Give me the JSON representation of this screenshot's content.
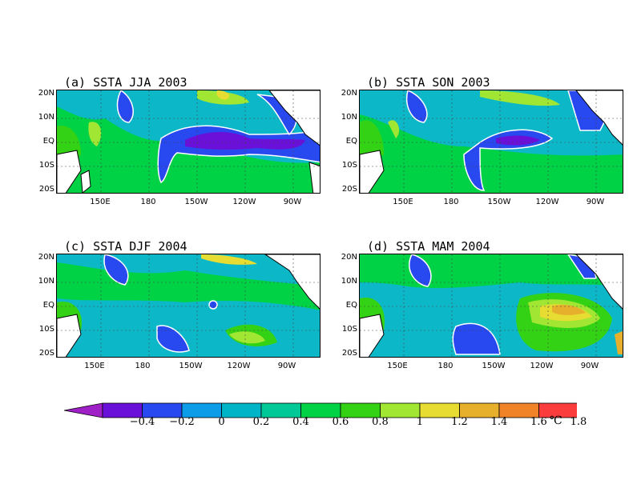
{
  "panels": [
    {
      "title": "(a) SSTA JJA 2003",
      "lat_labels": [
        "20N",
        "10N",
        "EQ",
        "10S",
        "20S"
      ],
      "lon_labels": [
        "150E",
        "180",
        "150W",
        "120W",
        "90W"
      ]
    },
    {
      "title": "(b) SSTA SON 2003",
      "lat_labels": [
        "20N",
        "10N",
        "EQ",
        "10S",
        "20S"
      ],
      "lon_labels": [
        "150E",
        "180",
        "150W",
        "120W",
        "90W"
      ]
    },
    {
      "title": "(c) SSTA DJF 2004",
      "lat_labels": [
        "20N",
        "10N",
        "EQ",
        "10S",
        "20S"
      ],
      "lon_labels": [
        "150E",
        "180",
        "150W",
        "120W",
        "90W"
      ]
    },
    {
      "title": "(d) SSTA MAM 2004",
      "lat_labels": [
        "20N",
        "10N",
        "EQ",
        "10S",
        "20S"
      ],
      "lon_labels": [
        "150E",
        "180",
        "150W",
        "120W",
        "90W"
      ]
    }
  ],
  "colorbar": {
    "labels": [
      "−0.4",
      "−0.2",
      "0",
      "0.2",
      "0.4",
      "0.6",
      "0.8",
      "1",
      "1.2",
      "1.4",
      "1.6",
      "1.8"
    ],
    "unit": "℃",
    "colors": [
      "#a020c8",
      "#6a10d8",
      "#2848f0",
      "#0c9ce8",
      "#00b4c8",
      "#00c896",
      "#00d246",
      "#34d214",
      "#a0e632",
      "#e6dc32",
      "#e6b02c",
      "#f08228",
      "#fa3c3c",
      "#f01e96"
    ]
  },
  "fill_colors": {
    "land": "#ffffff",
    "background": "#0cb8c8"
  }
}
